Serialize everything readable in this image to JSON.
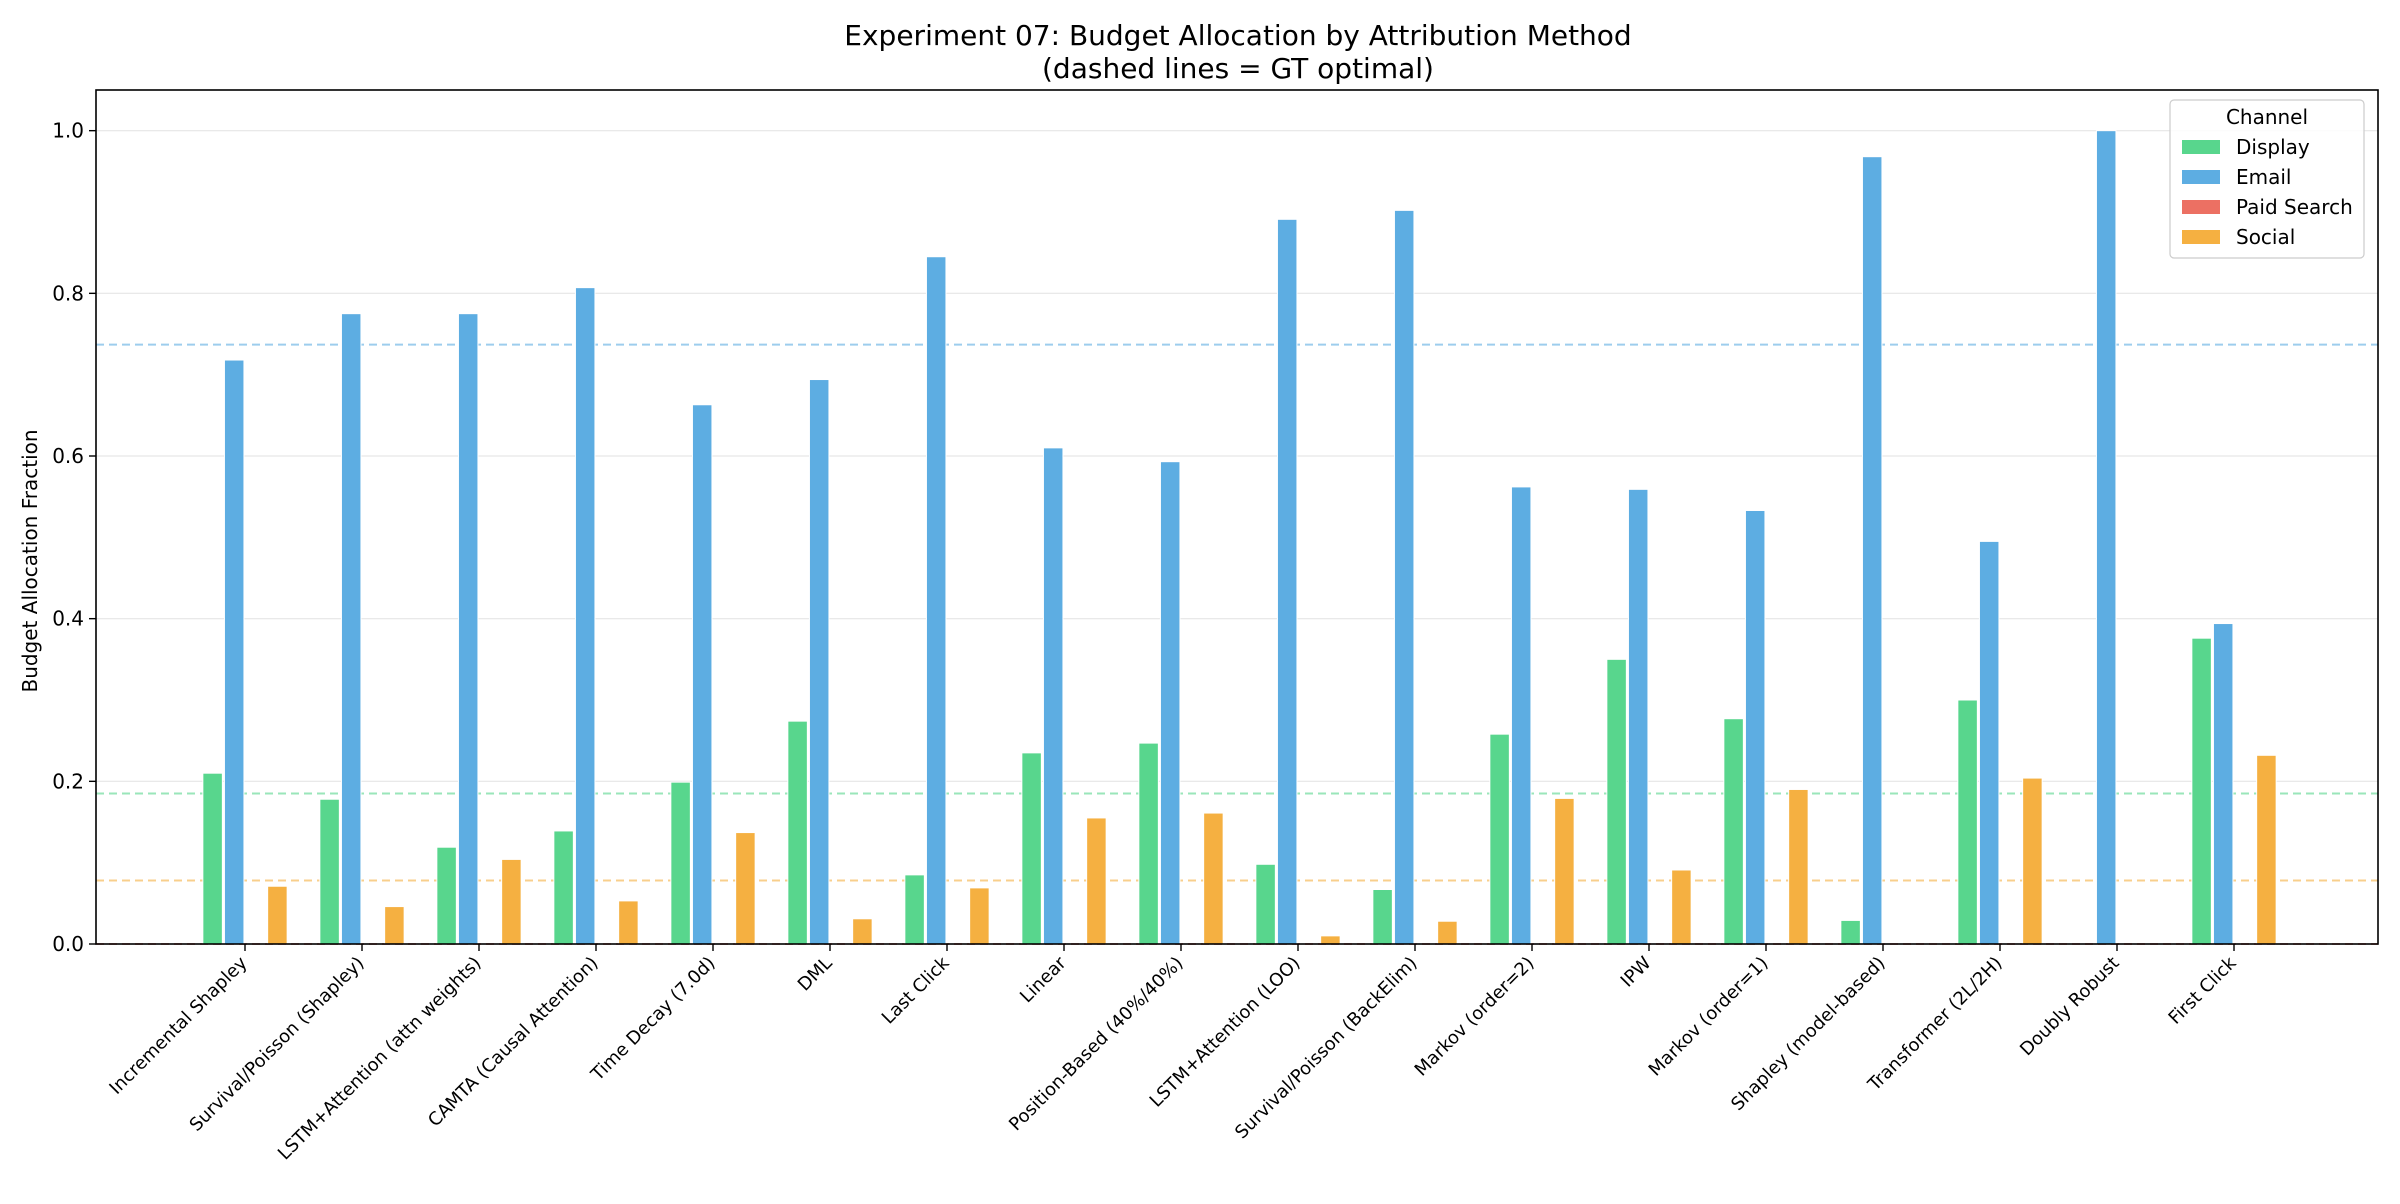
{
  "chart_data": {
    "type": "bar",
    "title": "Experiment 07: Budget Allocation by Attribution Method",
    "subtitle": "(dashed lines = GT optimal)",
    "xlabel": "",
    "ylabel": "Budget Allocation Fraction",
    "ylim": [
      0,
      1.05
    ],
    "yticks": [
      0.0,
      0.2,
      0.4,
      0.6,
      0.8,
      1.0
    ],
    "ytick_labels": [
      "0.0",
      "0.2",
      "0.4",
      "0.6",
      "0.8",
      "1.0"
    ],
    "grid": "horizontal",
    "legend_title": "Channel",
    "legend_position": "top-right",
    "categories": [
      "Incremental Shapley",
      "Survival/Poisson (Shapley)",
      "LSTM+Attention (attn weights)",
      "CAMTA (Causal Attention)",
      "Time Decay (7.0d)",
      "DML",
      "Last Click",
      "Linear",
      "Position-Based (40%/40%)",
      "LSTM+Attention (LOO)",
      "Survival/Poisson (BackElim)",
      "Markov (order=2)",
      "IPW",
      "Markov (order=1)",
      "Shapley (model-based)",
      "Transformer (2L/2H)",
      "Doubly Robust",
      "First Click"
    ],
    "series": [
      {
        "name": "Display",
        "color": "#58d68d",
        "values": [
          0.21,
          0.178,
          0.119,
          0.139,
          0.199,
          0.274,
          0.085,
          0.235,
          0.247,
          0.098,
          0.067,
          0.258,
          0.35,
          0.277,
          0.029,
          0.3,
          0.0,
          0.376
        ],
        "gt_optimal": 0.185
      },
      {
        "name": "Email",
        "color": "#5dade2",
        "values": [
          0.718,
          0.775,
          0.775,
          0.807,
          0.663,
          0.694,
          0.845,
          0.61,
          0.593,
          0.891,
          0.902,
          0.562,
          0.559,
          0.533,
          0.968,
          0.495,
          1.0,
          0.394
        ],
        "gt_optimal": 0.737
      },
      {
        "name": "Paid Search",
        "color": "#ec7063",
        "values": [
          0.0,
          0.0,
          0.0,
          0.0,
          0.0,
          0.0,
          0.0,
          0.0,
          0.0,
          0.0,
          0.0,
          0.0,
          0.0,
          0.0,
          0.0,
          0.0,
          0.0,
          0.0
        ],
        "gt_optimal": 0.0
      },
      {
        "name": "Social",
        "color": "#f5b041",
        "values": [
          0.071,
          0.046,
          0.104,
          0.053,
          0.137,
          0.031,
          0.069,
          0.155,
          0.161,
          0.01,
          0.028,
          0.179,
          0.091,
          0.19,
          0.0,
          0.204,
          0.0,
          0.232
        ],
        "gt_optimal": 0.078
      }
    ]
  }
}
